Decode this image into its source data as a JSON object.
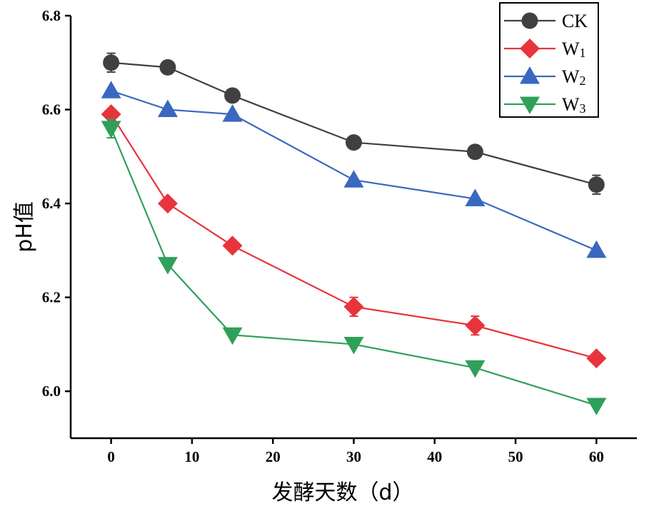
{
  "chart_data": {
    "type": "line",
    "xlabel": "发酵天数（d）",
    "ylabel": "pH值",
    "x": [
      0,
      7,
      15,
      30,
      45,
      60
    ],
    "xticks": [
      0,
      10,
      20,
      30,
      40,
      50,
      60
    ],
    "yticks": [
      6.0,
      6.2,
      6.4,
      6.6,
      6.8
    ],
    "xlim": [
      -5,
      65
    ],
    "ylim": [
      5.9,
      6.8
    ],
    "grid": false,
    "legend_position": "top-right",
    "series": [
      {
        "name": "CK",
        "base": "CK",
        "sub": "",
        "color": "#404040",
        "marker": "circle",
        "values": [
          6.7,
          6.69,
          6.63,
          6.53,
          6.51,
          6.44
        ],
        "errors": [
          0.02,
          0.0,
          0.0,
          0.0,
          0.0,
          0.02
        ]
      },
      {
        "name": "W1",
        "base": "W",
        "sub": "1",
        "color": "#e8343c",
        "marker": "diamond",
        "values": [
          6.59,
          6.4,
          6.31,
          6.18,
          6.14,
          6.07
        ],
        "errors": [
          0.0,
          0.0,
          0.0,
          0.02,
          0.02,
          0.0
        ]
      },
      {
        "name": "W2",
        "base": "W",
        "sub": "2",
        "color": "#3a68c0",
        "marker": "triangle-up",
        "values": [
          6.64,
          6.6,
          6.59,
          6.45,
          6.41,
          6.3
        ],
        "errors": [
          0.0,
          0.0,
          0.0,
          0.0,
          0.0,
          0.0
        ]
      },
      {
        "name": "W3",
        "base": "W",
        "sub": "3",
        "color": "#2fa05a",
        "marker": "triangle-down",
        "values": [
          6.56,
          6.27,
          6.12,
          6.1,
          6.05,
          5.97
        ],
        "errors": [
          0.02,
          0.0,
          0.0,
          0.0,
          0.0,
          0.0
        ]
      }
    ]
  }
}
